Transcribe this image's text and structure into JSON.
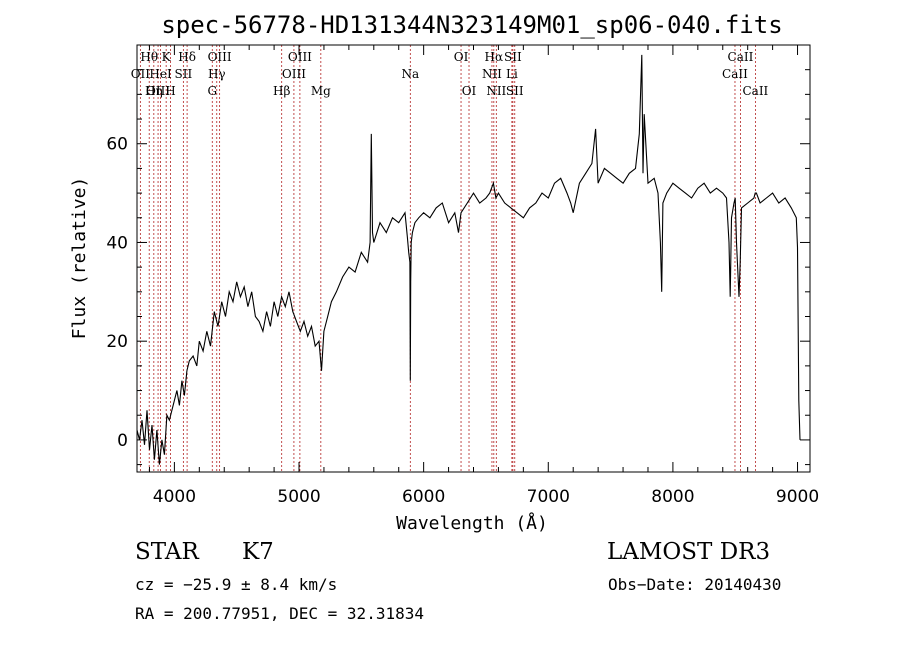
{
  "chart_data": {
    "type": "line",
    "title": "spec-56778-HD131344N323149M01_sp06-040.fits",
    "xlabel": "Wavelength (Å)",
    "ylabel": "Flux (relative)",
    "xlim": [
      3700,
      9100
    ],
    "ylim": [
      -6.5,
      80
    ],
    "xticks": [
      4000,
      5000,
      6000,
      7000,
      8000,
      9000
    ],
    "yticks": [
      0,
      20,
      40,
      60
    ],
    "grid": false,
    "series": [
      {
        "x": [
          3700,
          3720,
          3740,
          3760,
          3780,
          3800,
          3820,
          3840,
          3860,
          3880,
          3900,
          3920,
          3940,
          3960,
          3980,
          4000,
          4020,
          4040,
          4060,
          4080,
          4100,
          4120,
          4150,
          4180,
          4200,
          4230,
          4260,
          4290,
          4320,
          4350,
          4380,
          4410,
          4440,
          4470,
          4500,
          4530,
          4560,
          4590,
          4620,
          4650,
          4680,
          4710,
          4740,
          4770,
          4800,
          4830,
          4860,
          4890,
          4920,
          4950,
          4980,
          5010,
          5040,
          5070,
          5100,
          5130,
          5160,
          5180,
          5200,
          5230,
          5260,
          5300,
          5350,
          5400,
          5450,
          5500,
          5550,
          5570,
          5580,
          5590,
          5600,
          5650,
          5700,
          5750,
          5800,
          5850,
          5870,
          5880,
          5890,
          5893,
          5896,
          5900,
          5910,
          5930,
          5960,
          6000,
          6050,
          6100,
          6150,
          6200,
          6250,
          6280,
          6300,
          6350,
          6400,
          6450,
          6500,
          6530,
          6560,
          6580,
          6600,
          6650,
          6700,
          6750,
          6800,
          6850,
          6900,
          6950,
          7000,
          7050,
          7100,
          7150,
          7180,
          7200,
          7250,
          7300,
          7350,
          7380,
          7400,
          7450,
          7500,
          7550,
          7600,
          7650,
          7700,
          7730,
          7750,
          7760,
          7770,
          7800,
          7850,
          7880,
          7900,
          7910,
          7920,
          7950,
          8000,
          8050,
          8100,
          8150,
          8200,
          8250,
          8300,
          8350,
          8400,
          8430,
          8450,
          8460,
          8470,
          8490,
          8500,
          8510,
          8530,
          8540,
          8550,
          8600,
          8650,
          8660,
          8670,
          8700,
          8750,
          8800,
          8850,
          8900,
          8950,
          8990,
          9000,
          9010,
          9020
        ],
        "y": [
          2,
          0,
          4,
          -1,
          6,
          -2,
          3,
          -4,
          2,
          -5,
          0,
          -3,
          5,
          4,
          6,
          8,
          10,
          7,
          12,
          9,
          14,
          16,
          17,
          15,
          20,
          18,
          22,
          19,
          26,
          23,
          28,
          25,
          30,
          28,
          32,
          29,
          31,
          27,
          30,
          25,
          24,
          22,
          26,
          23,
          28,
          25,
          29,
          27,
          30,
          26,
          24,
          22,
          24,
          21,
          23,
          19,
          20,
          14,
          22,
          25,
          28,
          30,
          33,
          35,
          34,
          38,
          36,
          40,
          62,
          42,
          40,
          44,
          42,
          45,
          44,
          46,
          41,
          38,
          36,
          12,
          32,
          40,
          42,
          44,
          45,
          46,
          45,
          47,
          48,
          44,
          46,
          42,
          46,
          48,
          50,
          48,
          49,
          50,
          52,
          49,
          50,
          48,
          47,
          46,
          45,
          47,
          48,
          50,
          49,
          52,
          53,
          50,
          48,
          46,
          52,
          54,
          56,
          63,
          52,
          55,
          54,
          53,
          52,
          54,
          55,
          62,
          78,
          54,
          66,
          52,
          53,
          50,
          40,
          30,
          48,
          50,
          52,
          51,
          50,
          49,
          51,
          52,
          50,
          51,
          50,
          49,
          40,
          29,
          45,
          48,
          49,
          40,
          29,
          36,
          47,
          48,
          49,
          50,
          50,
          48,
          49,
          50,
          48,
          49,
          47,
          45,
          39,
          8,
          0
        ]
      }
    ],
    "spectral_lines": [
      {
        "label": "Hθ",
        "x": 3798,
        "row": 1
      },
      {
        "label": "OII",
        "x": 3727,
        "row": 2
      },
      {
        "label": "OIII",
        "x": 3869,
        "row": 3
      },
      {
        "label": "K",
        "x": 3934,
        "row": 1
      },
      {
        "label": "HeI",
        "x": 3889,
        "row": 2
      },
      {
        "label": "Hη",
        "x": 3835,
        "row": 3
      },
      {
        "label": "H",
        "x": 3969,
        "row": 3
      },
      {
        "label": "SII",
        "x": 4072,
        "row": 2
      },
      {
        "label": "Hδ",
        "x": 4102,
        "row": 1
      },
      {
        "label": "OIII",
        "x": 4363,
        "row": 1
      },
      {
        "label": "Hγ",
        "x": 4340,
        "row": 2
      },
      {
        "label": "G",
        "x": 4304,
        "row": 3
      },
      {
        "label": "Hβ",
        "x": 4861,
        "row": 3
      },
      {
        "label": "OIII",
        "x": 5007,
        "row": 1
      },
      {
        "label": "OIII",
        "x": 4959,
        "row": 2
      },
      {
        "label": "Mg",
        "x": 5175,
        "row": 3
      },
      {
        "label": "Na",
        "x": 5893,
        "row": 2
      },
      {
        "label": "OI",
        "x": 6300,
        "row": 1
      },
      {
        "label": "OI",
        "x": 6364,
        "row": 3
      },
      {
        "label": "Hα",
        "x": 6563,
        "row": 1
      },
      {
        "label": "SII",
        "x": 6716,
        "row": 1
      },
      {
        "label": "NII",
        "x": 6548,
        "row": 2
      },
      {
        "label": "Li",
        "x": 6708,
        "row": 2
      },
      {
        "label": "NII",
        "x": 6583,
        "row": 3
      },
      {
        "label": "SII",
        "x": 6731,
        "row": 3
      },
      {
        "label": "CaII",
        "x": 8542,
        "row": 1
      },
      {
        "label": "CaII",
        "x": 8498,
        "row": 2
      },
      {
        "label": "CaII",
        "x": 8662,
        "row": 3
      }
    ]
  },
  "info": {
    "class_label": "STAR",
    "subclass": "K7",
    "survey": "LAMOST DR3",
    "cz": "cz = −25.9 ± 8.4 km/s",
    "obs_date": "Obs−Date: 20140430",
    "coords": "RA = 200.77951, DEC =  32.31834"
  },
  "colors": {
    "spectrum": "#000000",
    "line_markers": "#b22222"
  }
}
